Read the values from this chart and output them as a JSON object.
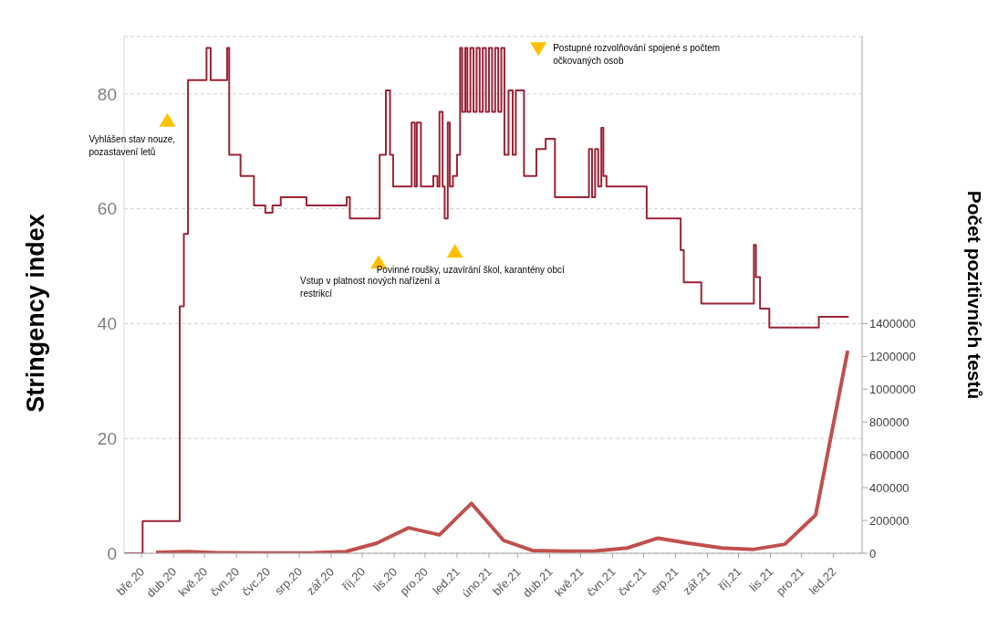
{
  "chart_data": {
    "type": "line",
    "ylabel": "Stringency index",
    "y2label": "Počet pozitivních testů",
    "xlim": [
      "2020-02-13",
      "2022-01-29"
    ],
    "xticks": [
      {
        "value": "2020-03-01",
        "label": "bře.20"
      },
      {
        "value": "2020-04-01",
        "label": "dub.20"
      },
      {
        "value": "2020-05-01",
        "label": "kvě.20"
      },
      {
        "value": "2020-06-01",
        "label": "čvn.20"
      },
      {
        "value": "2020-07-01",
        "label": "čvc.20"
      },
      {
        "value": "2020-08-01",
        "label": "srp.20"
      },
      {
        "value": "2020-09-01",
        "label": "zář.20"
      },
      {
        "value": "2020-10-01",
        "label": "říj.20"
      },
      {
        "value": "2020-11-01",
        "label": "lis.20"
      },
      {
        "value": "2020-12-01",
        "label": "pro.20"
      },
      {
        "value": "2021-01-01",
        "label": "led.21"
      },
      {
        "value": "2021-02-01",
        "label": "úno.21"
      },
      {
        "value": "2021-03-01",
        "label": "bře.21"
      },
      {
        "value": "2021-04-01",
        "label": "dub.21"
      },
      {
        "value": "2021-05-01",
        "label": "kvě.21"
      },
      {
        "value": "2021-06-01",
        "label": "čvn.21"
      },
      {
        "value": "2021-07-01",
        "label": "čvc.21"
      },
      {
        "value": "2021-08-01",
        "label": "srp.21"
      },
      {
        "value": "2021-09-01",
        "label": "zář.21"
      },
      {
        "value": "2021-10-01",
        "label": "říj.21"
      },
      {
        "value": "2021-11-01",
        "label": "lis.21"
      },
      {
        "value": "2021-12-01",
        "label": "pro.21"
      },
      {
        "value": "2022-01-01",
        "label": "led.22"
      }
    ],
    "ylim": [
      0,
      90
    ],
    "yticks": [
      0,
      20,
      40,
      60,
      80
    ],
    "y2lim": [
      0,
      3150000
    ],
    "y2ticks": [
      0,
      200000,
      400000,
      600000,
      800000,
      1000000,
      1200000,
      1400000
    ],
    "grid": "y",
    "series": [
      {
        "type": "step",
        "color": "#9b2335",
        "x": [
          "2020-02-13",
          "2020-03-02",
          "2020-04-07",
          "2020-04-11",
          "2020-04-15",
          "2020-05-03",
          "2020-05-07",
          "2020-05-23",
          "2020-05-25",
          "2020-06-05",
          "2020-06-18",
          "2020-06-29",
          "2020-07-06",
          "2020-07-14",
          "2020-08-08",
          "2020-09-16",
          "2020-09-19",
          "2020-10-18",
          "2020-10-24",
          "2020-10-28",
          "2020-10-31",
          "2020-11-18",
          "2020-11-21",
          "2020-11-23",
          "2020-11-27",
          "2020-12-09",
          "2020-12-13",
          "2020-12-15",
          "2020-12-18",
          "2020-12-20",
          "2020-12-23",
          "2020-12-25",
          "2020-12-28",
          "2021-01-01",
          "2021-01-04",
          "2021-01-06",
          "2021-01-09",
          "2021-01-11",
          "2021-01-14",
          "2021-01-17",
          "2021-01-20",
          "2021-01-23",
          "2021-01-26",
          "2021-01-29",
          "2021-02-01",
          "2021-02-04",
          "2021-02-07",
          "2021-02-10",
          "2021-02-13",
          "2021-02-16",
          "2021-02-20",
          "2021-02-24",
          "2021-02-27",
          "2021-03-07",
          "2021-03-19",
          "2021-03-28",
          "2021-04-06",
          "2021-05-09",
          "2021-05-12",
          "2021-05-15",
          "2021-05-18",
          "2021-05-21",
          "2021-05-23",
          "2021-05-26",
          "2021-07-04",
          "2021-08-06",
          "2021-08-09",
          "2021-08-26",
          "2021-10-16",
          "2021-10-18",
          "2021-10-22",
          "2021-10-31",
          "2021-12-18",
          "2022-01-16"
        ],
        "values": [
          0,
          5.6,
          43,
          55.6,
          82.4,
          88,
          82.4,
          88,
          69.4,
          65.7,
          60.6,
          59.3,
          60.6,
          62,
          60.6,
          62,
          58.3,
          69.4,
          80.6,
          69.4,
          63.9,
          75,
          63.9,
          75,
          63.9,
          65.7,
          63.9,
          76.9,
          63.9,
          58.3,
          75,
          63.9,
          65.7,
          69.4,
          88,
          76.9,
          88,
          76.9,
          88,
          76.9,
          88,
          76.9,
          88,
          76.9,
          88,
          76.9,
          88,
          76.9,
          88,
          69.4,
          80.6,
          69.4,
          80.6,
          65.7,
          70.4,
          72.2,
          62,
          70.4,
          62,
          70.4,
          63.9,
          74.1,
          65.7,
          63.9,
          58.3,
          52.8,
          47.2,
          43.5,
          53.7,
          48.1,
          42.6,
          39.3,
          41.2,
          41.2
        ]
      },
      {
        "axis": "y2",
        "color": "#c0504d",
        "x": [
          "2020-03-15",
          "2020-04-15",
          "2020-05-15",
          "2020-06-15",
          "2020-07-15",
          "2020-08-15",
          "2020-09-15",
          "2020-10-15",
          "2020-11-15",
          "2020-12-15",
          "2021-01-15",
          "2021-02-15",
          "2021-03-15",
          "2021-04-15",
          "2021-05-15",
          "2021-06-15",
          "2021-07-15",
          "2021-08-15",
          "2021-09-15",
          "2021-10-15",
          "2021-11-15",
          "2021-12-15",
          "2022-01-15"
        ],
        "values": [
          5000,
          10000,
          3000,
          2000,
          2000,
          3000,
          10000,
          61000,
          155000,
          112000,
          304000,
          79000,
          17000,
          13000,
          14000,
          32000,
          92000,
          60000,
          32000,
          23000,
          55000,
          234000,
          1235000
        ]
      }
    ],
    "annotations": [
      {
        "text": "Vyhlášen stav nouze,\npozastavení letů",
        "x": "2020-03-26",
        "y": 75.4
      },
      {
        "text": "Vstup v platnost nových nařízení a\nrestrikcí",
        "x": "2020-10-17",
        "y": 50.7
      },
      {
        "text": "Povinné roušky, uzavírání škol, karantény obcí",
        "x": "2020-12-30",
        "y": 52.6
      },
      {
        "text": "Postupné rozvolňování spojené s počtem\nočkovaných osob",
        "x": "2021-03-21",
        "y": 87.9
      }
    ]
  }
}
